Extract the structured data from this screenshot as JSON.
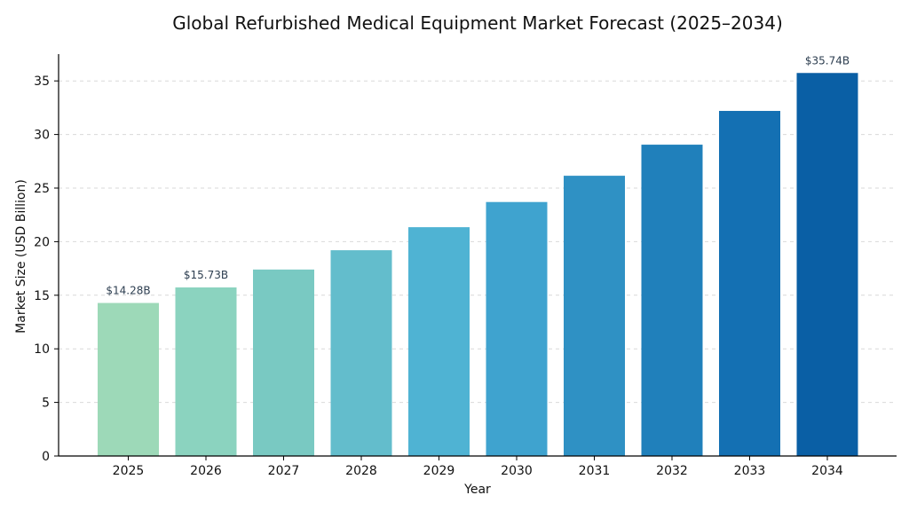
{
  "chart_data": {
    "type": "bar",
    "title": "Global Refurbished Medical Equipment Market Forecast (2025–2034)",
    "xlabel": "Year",
    "ylabel": "Market Size (USD Billion)",
    "categories": [
      "2025",
      "2026",
      "2027",
      "2028",
      "2029",
      "2030",
      "2031",
      "2032",
      "2033",
      "2034"
    ],
    "values": [
      14.28,
      15.73,
      17.4,
      19.2,
      21.35,
      23.7,
      26.15,
      29.05,
      32.2,
      35.74
    ],
    "ylim": [
      0,
      37.5
    ],
    "yticks": [
      0,
      5,
      10,
      15,
      20,
      25,
      30,
      35
    ],
    "grid": true,
    "data_labels": [
      {
        "category": "2025",
        "text": "$14.28B"
      },
      {
        "category": "2026",
        "text": "$15.73B"
      },
      {
        "category": "2034",
        "text": "$35.74B"
      }
    ],
    "colors": [
      "#9dd9b8",
      "#8bd3bf",
      "#79c9c2",
      "#63bdcc",
      "#4fb3d3",
      "#3fa3cf",
      "#2f91c4",
      "#2080bb",
      "#1470b3",
      "#0a5fa5"
    ]
  }
}
